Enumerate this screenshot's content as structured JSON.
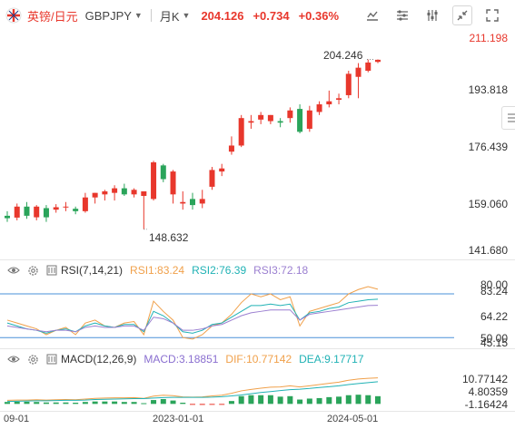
{
  "header": {
    "pair_name": "英镑/日元",
    "symbol": "GBPJPY",
    "period": "月K",
    "price": "204.126",
    "change": "+0.734",
    "change_pct": "+0.36%"
  },
  "toolbar_icons": [
    "chart-type-icon",
    "indicator-settings-icon",
    "indicator-settings-icon-2",
    "collapse-icon",
    "fullscreen-icon"
  ],
  "price_axis": [
    "211.198",
    "193.818",
    "176.439",
    "159.060",
    "141.680"
  ],
  "annotations": {
    "high": "204.246",
    "low": "148.632"
  },
  "rsi": {
    "name": "RSI(7,14,21)",
    "rsi1": "RSI1:83.24",
    "rsi2": "RSI2:76.39",
    "rsi3": "RSI3:72.18",
    "axis": [
      "80.00",
      "83.24",
      "64.22",
      "50.00",
      "45.15"
    ]
  },
  "macd": {
    "name": "MACD(12,26,9)",
    "macd": "MACD:3.18851",
    "dif": "DIF:10.77142",
    "dea": "DEA:9.17717",
    "axis": [
      "10.77142",
      "4.80359",
      "-1.16424"
    ]
  },
  "dates": [
    "09-01",
    "2023-01-01",
    "2024-05-01"
  ],
  "colors": {
    "up": "#e8372c",
    "down": "#2aa45a",
    "rsi1": "#f0a04a",
    "rsi2": "#20b2b5",
    "rsi3": "#9b7fd0"
  },
  "chart_data": {
    "type": "candlestick",
    "candles": [
      {
        "o": 153.0,
        "h": 154.5,
        "l": 151.0,
        "c": 152.2
      },
      {
        "o": 152.4,
        "h": 157.0,
        "l": 151.5,
        "c": 156.0
      },
      {
        "o": 156.0,
        "h": 157.5,
        "l": 152.0,
        "c": 153.0
      },
      {
        "o": 152.5,
        "h": 156.5,
        "l": 151.5,
        "c": 156.0
      },
      {
        "o": 155.5,
        "h": 156.5,
        "l": 151.0,
        "c": 152.5
      },
      {
        "o": 155.0,
        "h": 156.8,
        "l": 154.0,
        "c": 155.8
      },
      {
        "o": 155.8,
        "h": 157.5,
        "l": 154.5,
        "c": 156.0
      },
      {
        "o": 155.3,
        "h": 156.0,
        "l": 153.5,
        "c": 154.5
      },
      {
        "o": 154.5,
        "h": 160.5,
        "l": 154.0,
        "c": 159.0
      },
      {
        "o": 159.0,
        "h": 160.5,
        "l": 157.0,
        "c": 160.5
      },
      {
        "o": 160.0,
        "h": 161.5,
        "l": 158.0,
        "c": 161.0
      },
      {
        "o": 160.5,
        "h": 163.0,
        "l": 158.0,
        "c": 162.0
      },
      {
        "o": 162.0,
        "h": 163.5,
        "l": 159.5,
        "c": 160.0
      },
      {
        "o": 160.0,
        "h": 162.0,
        "l": 159.0,
        "c": 161.5
      },
      {
        "o": 159.5,
        "h": 160.5,
        "l": 148.6,
        "c": 161.0
      },
      {
        "o": 158.5,
        "h": 171.0,
        "l": 158.0,
        "c": 170.5
      },
      {
        "o": 169.5,
        "h": 170.0,
        "l": 164.0,
        "c": 165.0
      },
      {
        "o": 160.0,
        "h": 168.0,
        "l": 157.0,
        "c": 167.5
      },
      {
        "o": 157.0,
        "h": 161.0,
        "l": 155.0,
        "c": 157.5
      },
      {
        "o": 158.5,
        "h": 160.5,
        "l": 155.0,
        "c": 156.5
      },
      {
        "o": 157.0,
        "h": 161.5,
        "l": 155.5,
        "c": 158.5
      },
      {
        "o": 162.5,
        "h": 169.0,
        "l": 161.5,
        "c": 168.0
      },
      {
        "o": 167.5,
        "h": 170.0,
        "l": 166.0,
        "c": 168.5
      },
      {
        "o": 174.0,
        "h": 179.0,
        "l": 173.0,
        "c": 176.0
      },
      {
        "o": 176.0,
        "h": 186.0,
        "l": 175.5,
        "c": 185.0
      },
      {
        "o": 183.5,
        "h": 186.0,
        "l": 181.5,
        "c": 184.0
      },
      {
        "o": 184.5,
        "h": 187.0,
        "l": 183.0,
        "c": 186.0
      },
      {
        "o": 184.0,
        "h": 186.0,
        "l": 183.0,
        "c": 186.0
      },
      {
        "o": 184.0,
        "h": 185.0,
        "l": 182.0,
        "c": 183.5
      },
      {
        "o": 185.0,
        "h": 188.5,
        "l": 183.5,
        "c": 187.5
      },
      {
        "o": 188.0,
        "h": 189.5,
        "l": 180.0,
        "c": 180.5
      },
      {
        "o": 181.5,
        "h": 189.0,
        "l": 180.5,
        "c": 187.5
      },
      {
        "o": 187.0,
        "h": 190.5,
        "l": 186.0,
        "c": 189.5
      },
      {
        "o": 189.5,
        "h": 194.0,
        "l": 188.5,
        "c": 190.5
      },
      {
        "o": 191.0,
        "h": 193.0,
        "l": 189.5,
        "c": 191.5
      },
      {
        "o": 192.5,
        "h": 200.5,
        "l": 191.5,
        "c": 199.5
      },
      {
        "o": 198.5,
        "h": 203.0,
        "l": 191.5,
        "c": 201.5
      },
      {
        "o": 200.5,
        "h": 204.2,
        "l": 200.0,
        "c": 203.2
      },
      {
        "o": 203.4,
        "h": 204.2,
        "l": 203.0,
        "c": 204.1
      }
    ],
    "ylim": [
      141.68,
      211.198
    ],
    "rsi": {
      "range": [
        45.15,
        90.0
      ],
      "rsi1": [
        62,
        60,
        58,
        56,
        52,
        55,
        57,
        52,
        60,
        62,
        58,
        57,
        60,
        61,
        52,
        75,
        68,
        62,
        50,
        49,
        52,
        58,
        60,
        66,
        74,
        80,
        78,
        80,
        76,
        78,
        58,
        68,
        70,
        72,
        74,
        80,
        83,
        85,
        83.24
      ],
      "rsi2": [
        60,
        58,
        56,
        55,
        53,
        55,
        56,
        54,
        58,
        60,
        58,
        57,
        59,
        59,
        54,
        68,
        65,
        60,
        54,
        53,
        55,
        59,
        60,
        64,
        68,
        72,
        72,
        73,
        72,
        73,
        62,
        67,
        68,
        70,
        71,
        74,
        75,
        76,
        76.39
      ],
      "rsi3": [
        58,
        57,
        56,
        55,
        54,
        55,
        55,
        54,
        57,
        58,
        57,
        57,
        58,
        58,
        55,
        64,
        63,
        60,
        55,
        55,
        56,
        58,
        59,
        62,
        65,
        67,
        68,
        69,
        69,
        69,
        62,
        66,
        67,
        68,
        69,
        70,
        71,
        72,
        72.18
      ]
    },
    "macd": {
      "range": [
        -2.5,
        15.5
      ],
      "dif": [
        1.5,
        1.6,
        1.6,
        1.7,
        1.6,
        1.7,
        1.8,
        1.7,
        2.0,
        2.3,
        2.4,
        2.5,
        2.5,
        2.6,
        2.3,
        3.2,
        3.6,
        3.4,
        2.9,
        2.8,
        2.9,
        3.3,
        3.6,
        4.4,
        5.4,
        6.0,
        6.5,
        6.9,
        7.0,
        7.5,
        7.0,
        7.5,
        8.0,
        8.5,
        9.0,
        9.8,
        10.3,
        10.6,
        10.77
      ],
      "dea": [
        1.0,
        1.1,
        1.2,
        1.3,
        1.3,
        1.4,
        1.5,
        1.5,
        1.6,
        1.8,
        1.9,
        2.0,
        2.1,
        2.2,
        2.2,
        2.4,
        2.6,
        2.7,
        2.7,
        2.7,
        2.7,
        2.8,
        3.0,
        3.3,
        3.7,
        4.2,
        4.7,
        5.1,
        5.5,
        5.9,
        6.1,
        6.4,
        6.8,
        7.1,
        7.5,
        8.0,
        8.4,
        8.8,
        9.18
      ],
      "hist": [
        0.8,
        0.9,
        0.9,
        0.8,
        0.6,
        0.6,
        0.6,
        0.5,
        0.8,
        1.0,
        1.0,
        1.0,
        0.8,
        0.8,
        0.3,
        1.6,
        2.0,
        1.4,
        0.5,
        -0.3,
        -0.4,
        -0.3,
        -0.2,
        1.2,
        3.2,
        3.6,
        3.6,
        3.6,
        3.0,
        3.2,
        1.8,
        2.2,
        2.4,
        2.8,
        3.0,
        3.6,
        3.8,
        3.6,
        3.19
      ]
    }
  }
}
